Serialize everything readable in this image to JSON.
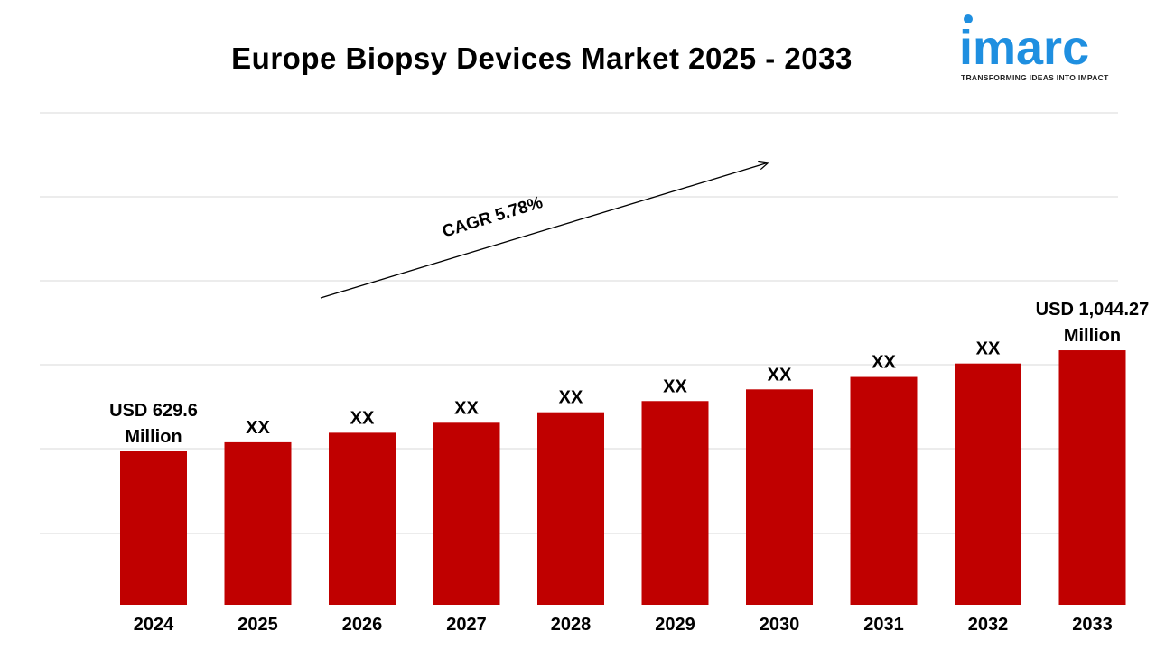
{
  "header": {
    "title": "Europe Biopsy Devices Market 2025 - 2033"
  },
  "logo": {
    "wordmark": "imarc",
    "tagline": "TRANSFORMING IDEAS INTO IMPACT",
    "color": "#1f8fe0"
  },
  "chart_data": {
    "type": "bar",
    "title": "Europe Biopsy Devices Market 2025 - 2033",
    "xlabel": "",
    "ylabel": "",
    "categories": [
      "2024",
      "2025",
      "2026",
      "2027",
      "2028",
      "2029",
      "2030",
      "2031",
      "2032",
      "2033"
    ],
    "values": [
      629.6,
      667,
      706,
      747,
      790,
      836,
      884,
      935,
      990,
      1044.27
    ],
    "data_labels": [
      [
        "USD 629.6",
        "Million"
      ],
      [
        "XX"
      ],
      [
        "XX"
      ],
      [
        "XX"
      ],
      [
        "XX"
      ],
      [
        "XX"
      ],
      [
        "XX"
      ],
      [
        "XX"
      ],
      [
        "XX"
      ],
      [
        "USD 1,044.27",
        "Million"
      ]
    ],
    "annotation": "CAGR 5.78%",
    "ylim": [
      0,
      1180
    ],
    "grid": true,
    "bar_color": "#c00000"
  }
}
